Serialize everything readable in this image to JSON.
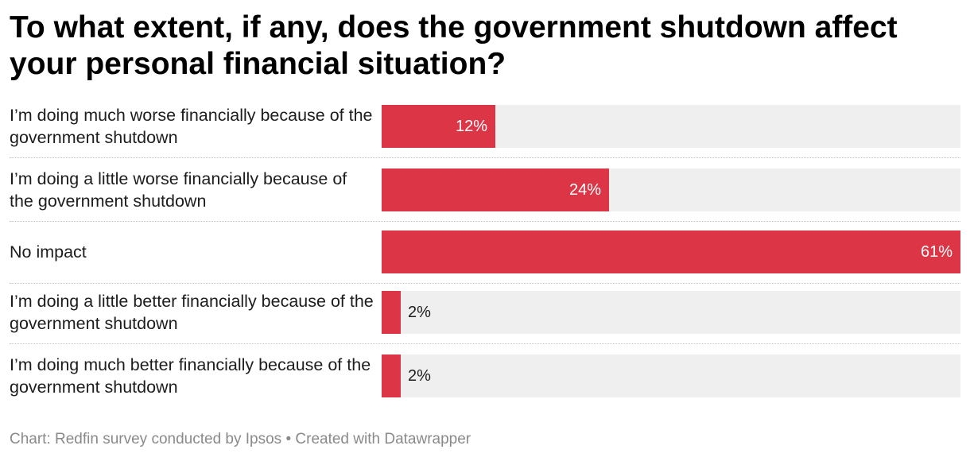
{
  "title": "To what extent, if any, does the government shutdown affect your personal financial situation?",
  "footer": {
    "source": "Chart: Redfin survey conducted by Ipsos",
    "separator": "•",
    "credit": "Created with Datawrapper"
  },
  "colors": {
    "bar": "#dc3545",
    "track": "#efefef"
  },
  "chart_data": {
    "type": "bar",
    "orientation": "horizontal",
    "categories": [
      "I’m doing much worse financially because of the government shutdown",
      "I’m doing a little worse financially because of the government shutdown",
      "No impact",
      "I’m doing a little better financially because of the government shutdown",
      "I’m doing much better financially because of the government shutdown"
    ],
    "values": [
      12,
      24,
      61,
      2,
      2
    ],
    "value_labels": [
      "12%",
      "24%",
      "61%",
      "2%",
      "2%"
    ],
    "unit": "%",
    "xlim": [
      0,
      61
    ],
    "grid": false,
    "legend": "none"
  }
}
